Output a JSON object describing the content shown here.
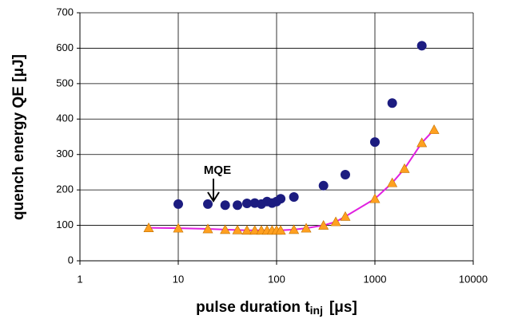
{
  "chart_data": {
    "type": "scatter",
    "y_label": "quench energy QE [μJ]",
    "x_label": {
      "main": "pulse duration t",
      "sub": "inj",
      "unit": "[μs]"
    },
    "annotation": "MQE",
    "xscale": "log",
    "grid": true,
    "xlim": [
      1,
      10000
    ],
    "xticks": [
      1,
      10,
      100,
      1000,
      10000
    ],
    "ylim": [
      0,
      700
    ],
    "yticks": [
      0,
      100,
      200,
      300,
      400,
      500,
      600,
      700
    ],
    "series": [
      {
        "marker": "circle",
        "color": "#1c1c80",
        "x": [
          10,
          20,
          30,
          40,
          50,
          60,
          70,
          80,
          90,
          100,
          110,
          150,
          300,
          500,
          1000,
          1500,
          3000
        ],
        "values": [
          160,
          160,
          157,
          157,
          162,
          163,
          160,
          167,
          163,
          167,
          175,
          180,
          212,
          243,
          335,
          445,
          607
        ]
      },
      {
        "marker": "triangle",
        "color": "#ffa020",
        "line_color": "#e020e0",
        "x": [
          5,
          10,
          20,
          30,
          40,
          50,
          60,
          70,
          80,
          90,
          100,
          110,
          150,
          200,
          300,
          400,
          500,
          1000,
          1500,
          2000,
          3000,
          4000
        ],
        "values": [
          93,
          92,
          90,
          88,
          87,
          86,
          86,
          86,
          86,
          86,
          86,
          86,
          88,
          92,
          100,
          110,
          125,
          175,
          220,
          260,
          333,
          370
        ]
      }
    ]
  }
}
